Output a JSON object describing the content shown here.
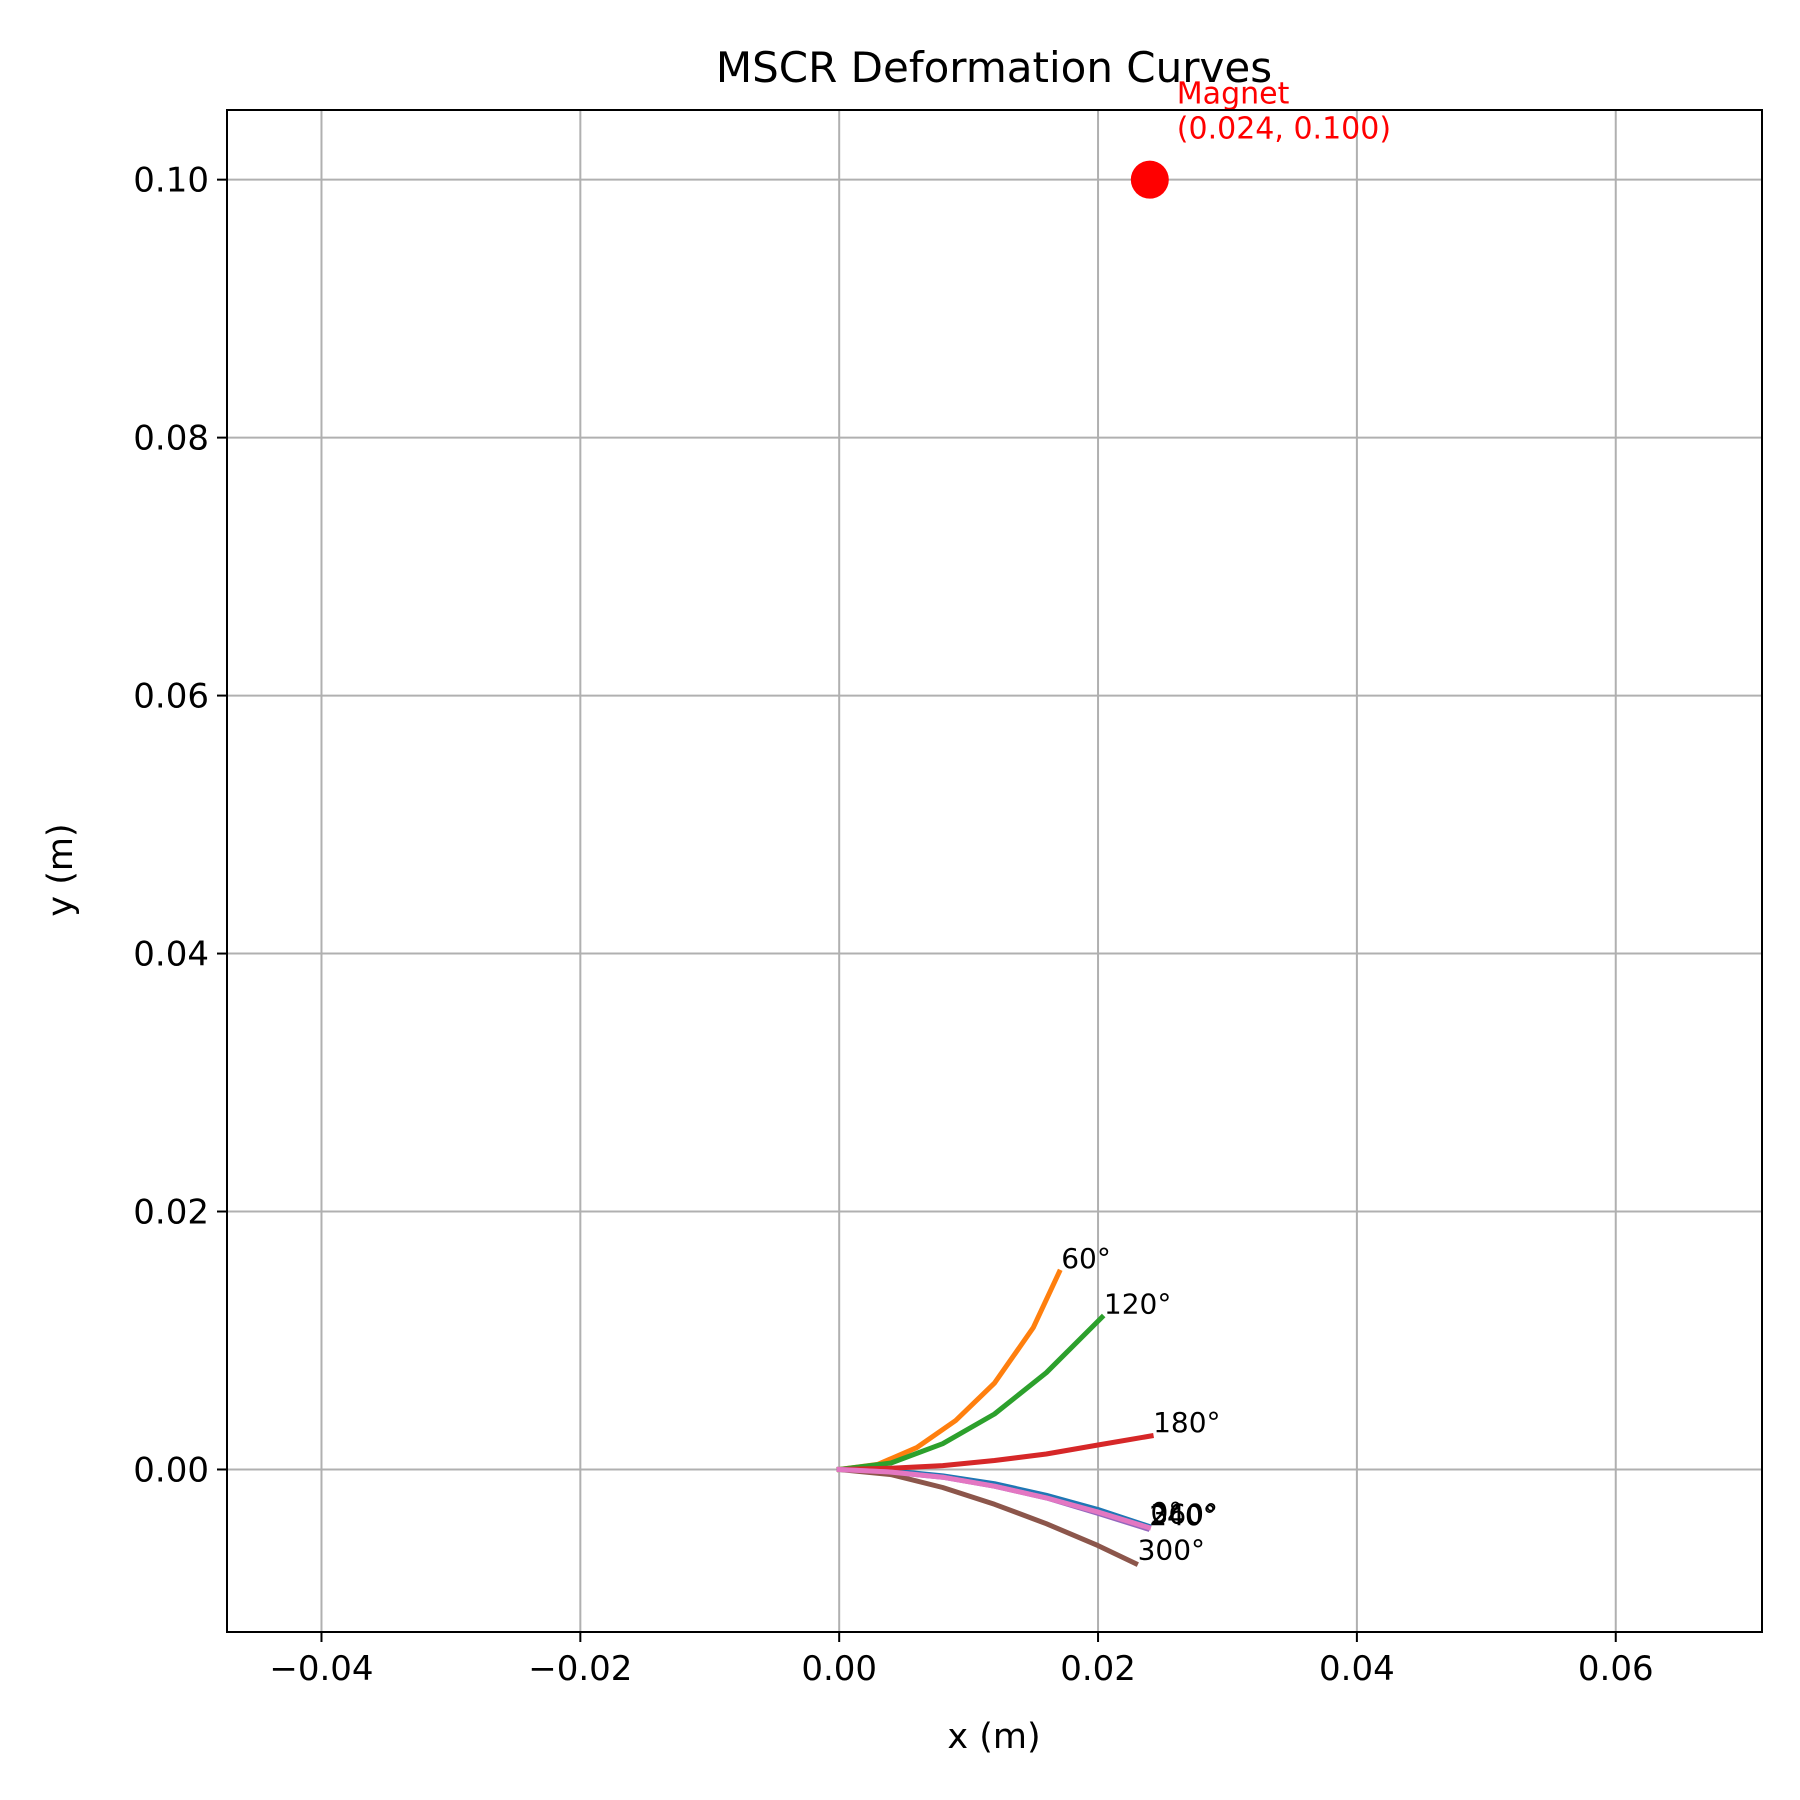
{
  "chart_data": {
    "type": "line",
    "title": "MSCR Deformation Curves",
    "xlabel": "x (m)",
    "ylabel": "y (m)",
    "xlim": [
      -0.0473,
      0.0713
    ],
    "ylim": [
      -0.0126,
      0.1054
    ],
    "xticks": [
      -0.04,
      -0.02,
      0.0,
      0.02,
      0.04,
      0.06
    ],
    "xtick_labels": [
      "−0.04",
      "−0.02",
      "0.00",
      "0.02",
      "0.04",
      "0.06"
    ],
    "yticks": [
      0.0,
      0.02,
      0.04,
      0.06,
      0.08,
      0.1
    ],
    "ytick_labels": [
      "0.00",
      "0.02",
      "0.04",
      "0.06",
      "0.08",
      "0.10"
    ],
    "grid": true,
    "series": [
      {
        "name": "0°",
        "label": "0°",
        "color": "#1f77b4",
        "x": [
          0,
          0.004,
          0.008,
          0.012,
          0.016,
          0.02,
          0.0239
        ],
        "y": [
          0,
          -0.0001,
          -0.0005,
          -0.0011,
          -0.002,
          -0.0031,
          -0.0044
        ]
      },
      {
        "name": "60°",
        "label": "60°",
        "color": "#ff7f0e",
        "x": [
          0,
          0.003,
          0.006,
          0.009,
          0.012,
          0.015,
          0.017
        ],
        "y": [
          0,
          0.0004,
          0.0017,
          0.0038,
          0.0067,
          0.011,
          0.0153
        ]
      },
      {
        "name": "120°",
        "label": "120°",
        "color": "#2ca02c",
        "x": [
          0,
          0.004,
          0.008,
          0.012,
          0.016,
          0.0203
        ],
        "y": [
          0,
          0.0005,
          0.002,
          0.0043,
          0.0075,
          0.0118
        ]
      },
      {
        "name": "180°",
        "label": "180°",
        "color": "#d62728",
        "x": [
          0,
          0.004,
          0.008,
          0.012,
          0.016,
          0.02,
          0.0241
        ],
        "y": [
          0,
          0.0001,
          0.0003,
          0.0007,
          0.0012,
          0.0019,
          0.0026
        ]
      },
      {
        "name": "240°",
        "label": "240°",
        "color": "#9467bd",
        "x": [
          0,
          0.004,
          0.008,
          0.012,
          0.016,
          0.02,
          0.0238
        ],
        "y": [
          0,
          -0.0002,
          -0.0006,
          -0.0013,
          -0.0022,
          -0.0034,
          -0.0046
        ]
      },
      {
        "name": "300°",
        "label": "300°",
        "color": "#8c564b",
        "x": [
          0,
          0.004,
          0.008,
          0.012,
          0.016,
          0.02,
          0.0229
        ],
        "y": [
          0,
          -0.0004,
          -0.0014,
          -0.0027,
          -0.0042,
          -0.0059,
          -0.0073
        ]
      },
      {
        "name": "360°",
        "label": "360°",
        "color": "#e377c2",
        "x": [
          0,
          0.004,
          0.008,
          0.012,
          0.016,
          0.02,
          0.0239
        ],
        "y": [
          0,
          -0.0002,
          -0.0006,
          -0.0013,
          -0.0022,
          -0.0033,
          -0.0045
        ]
      }
    ],
    "annotations": [
      {
        "kind": "magnet",
        "x": 0.024,
        "y": 0.1,
        "color": "#ff0000",
        "label_line1": "Magnet",
        "label_line2": "(0.024, 0.100)"
      }
    ]
  }
}
